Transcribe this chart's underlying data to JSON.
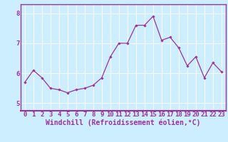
{
  "x": [
    0,
    1,
    2,
    3,
    4,
    5,
    6,
    7,
    8,
    9,
    10,
    11,
    12,
    13,
    14,
    15,
    16,
    17,
    18,
    19,
    20,
    21,
    22,
    23
  ],
  "y": [
    5.7,
    6.1,
    5.85,
    5.5,
    5.45,
    5.35,
    5.45,
    5.5,
    5.6,
    5.85,
    6.55,
    7.0,
    7.0,
    7.6,
    7.6,
    7.9,
    7.1,
    7.2,
    6.85,
    6.25,
    6.55,
    5.85,
    6.35,
    6.05
  ],
  "line_color": "#993399",
  "marker": "D",
  "marker_size": 1.8,
  "line_width": 0.9,
  "bg_color": "#cceeff",
  "grid_color": "#ffffff",
  "xlabel": "Windchill (Refroidissement éolien,°C)",
  "xlabel_fontsize": 7,
  "xlabel_color": "#993399",
  "tick_color": "#993399",
  "ylim": [
    4.75,
    8.3
  ],
  "xlim": [
    -0.5,
    23.5
  ],
  "yticks": [
    5,
    6,
    7,
    8
  ],
  "xticks": [
    0,
    1,
    2,
    3,
    4,
    5,
    6,
    7,
    8,
    9,
    10,
    11,
    12,
    13,
    14,
    15,
    16,
    17,
    18,
    19,
    20,
    21,
    22,
    23
  ],
  "tick_fontsize": 6.5,
  "spine_color": "#993399",
  "spine_bottom_color": "#993399"
}
